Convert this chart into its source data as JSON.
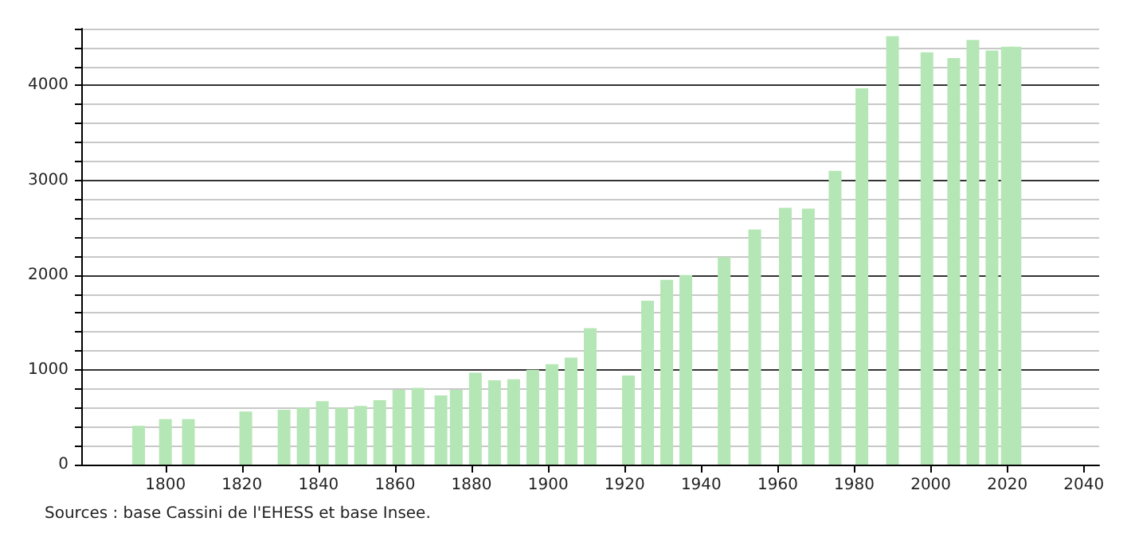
{
  "chart_data": {
    "type": "bar",
    "x": [
      1793,
      1800,
      1806,
      1821,
      1831,
      1836,
      1841,
      1846,
      1851,
      1856,
      1861,
      1866,
      1872,
      1876,
      1881,
      1886,
      1891,
      1896,
      1901,
      1906,
      1911,
      1921,
      1926,
      1931,
      1936,
      1946,
      1954,
      1962,
      1968,
      1975,
      1982,
      1990,
      1999,
      2006,
      2011,
      2016,
      2020,
      2022
    ],
    "values": [
      410,
      480,
      480,
      560,
      580,
      600,
      670,
      600,
      620,
      680,
      790,
      810,
      730,
      790,
      970,
      890,
      900,
      1000,
      1060,
      1130,
      1440,
      940,
      1730,
      1950,
      2000,
      2190,
      2480,
      2710,
      2700,
      3100,
      3970,
      4520,
      4350,
      4290,
      4480,
      4370,
      4410,
      4410
    ],
    "color": "#b5e6b5",
    "xlim": [
      1778,
      2044
    ],
    "xticks": [
      1800,
      1820,
      1840,
      1860,
      1880,
      1900,
      1920,
      1940,
      1960,
      1980,
      2000,
      2020,
      2040
    ],
    "ylim": [
      0,
      4600
    ],
    "yticks": [
      0,
      {
        "value": 200,
        "label": null
      },
      {
        "value": 400,
        "label": null
      },
      {
        "value": 600,
        "label": null
      },
      {
        "value": 800,
        "label": null
      },
      1000,
      {
        "value": 1200,
        "label": null
      },
      {
        "value": 1400,
        "label": null
      },
      {
        "value": 1600,
        "label": null
      },
      {
        "value": 1800,
        "label": null
      },
      2000,
      {
        "value": 2200,
        "label": null
      },
      {
        "value": 2400,
        "label": null
      },
      {
        "value": 2600,
        "label": null
      },
      {
        "value": 2800,
        "label": null
      },
      3000,
      {
        "value": 3200,
        "label": null
      },
      {
        "value": 3400,
        "label": null
      },
      {
        "value": 3600,
        "label": null
      },
      {
        "value": 3800,
        "label": null
      },
      4000,
      {
        "value": 4200,
        "label": null
      },
      {
        "value": 4400,
        "label": null
      },
      {
        "value": 4600,
        "label": null
      }
    ],
    "grid": "y",
    "annotations": [
      "Sources : base Cassini de l'EHESS et base Insee."
    ]
  }
}
